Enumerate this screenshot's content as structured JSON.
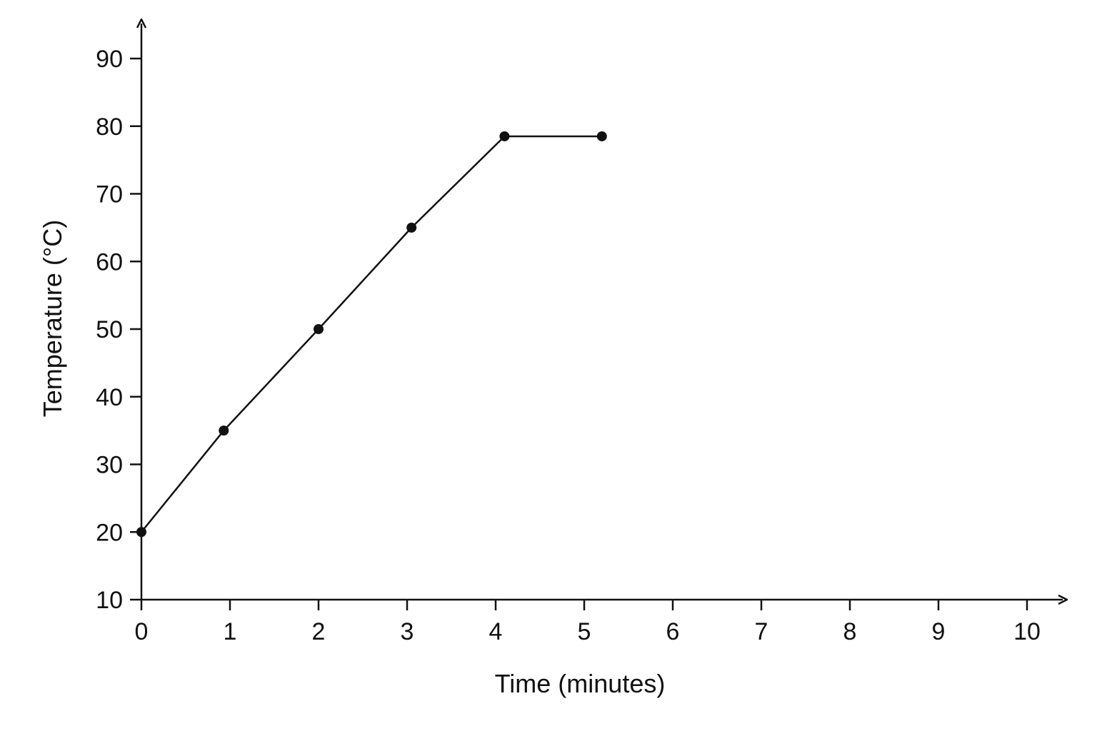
{
  "chart_data": {
    "type": "line",
    "title": "",
    "xlabel": "Time (minutes)",
    "ylabel": "Temperature (°C)",
    "xlim": [
      0,
      10
    ],
    "ylim": [
      10,
      90
    ],
    "x_ticks": [
      0,
      1,
      2,
      3,
      4,
      5,
      6,
      7,
      8,
      9,
      10
    ],
    "y_ticks": [
      10,
      20,
      30,
      40,
      50,
      60,
      70,
      80,
      90
    ],
    "grid": false,
    "legend": "none",
    "colors": {
      "line": "#111111",
      "marker": "#111111",
      "axis": "#111111"
    },
    "series": [
      {
        "x": [
          0,
          0.93,
          2.0,
          3.05,
          4.1,
          5.2
        ],
        "y": [
          20,
          35,
          50,
          65,
          78.5,
          78.5
        ]
      }
    ]
  }
}
